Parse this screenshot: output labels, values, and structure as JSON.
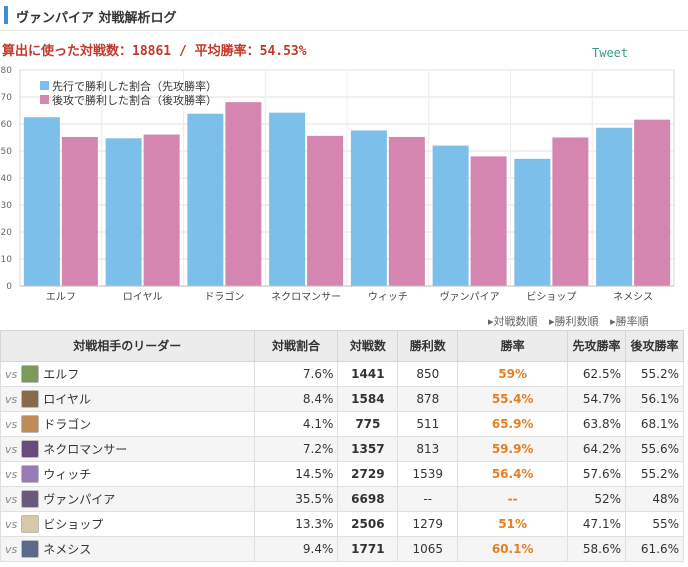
{
  "header": {
    "title": "ヴァンパイア 対戦解析ログ"
  },
  "summary": {
    "text": "算出に使った対戦数：18861 / 平均勝率：54.53%"
  },
  "tweet_label": "Tweet",
  "sort_links": [
    "▸対戦数順",
    "▸勝利数順",
    "▸勝率順"
  ],
  "colors": {
    "first": "#7cbfea",
    "second": "#d586b0",
    "rate": "#e67e22",
    "accent": "#3a8fd8"
  },
  "chart_data": {
    "type": "bar",
    "categories": [
      "エルフ",
      "ロイヤル",
      "ドラゴン",
      "ネクロマンサー",
      "ウィッチ",
      "ヴァンパイア",
      "ビショップ",
      "ネメシス"
    ],
    "series": [
      {
        "name": "先行で勝利した割合（先攻勝率）",
        "values": [
          62.5,
          54.7,
          63.8,
          64.2,
          57.6,
          52,
          47.1,
          58.6
        ]
      },
      {
        "name": "後攻で勝利した割合（後攻勝率）",
        "values": [
          55.2,
          56.1,
          68.1,
          55.6,
          55.2,
          48,
          55,
          61.6
        ]
      }
    ],
    "yticks": [
      0,
      10,
      20,
      30,
      40,
      50,
      60,
      70,
      80
    ],
    "ylim": [
      0,
      80
    ],
    "grid": true,
    "legend": "top-left"
  },
  "table": {
    "headers": [
      "対戦相手のリーダー",
      "対戦割合",
      "対戦数",
      "勝利数",
      "勝率",
      "先攻勝率",
      "後攻勝率"
    ],
    "vs_label": "vs",
    "rows": [
      {
        "leader": "エルフ",
        "share": "7.6%",
        "games": "1441",
        "wins": "850",
        "rate": "59%",
        "first": "62.5%",
        "second": "55.2%"
      },
      {
        "leader": "ロイヤル",
        "share": "8.4%",
        "games": "1584",
        "wins": "878",
        "rate": "55.4%",
        "first": "54.7%",
        "second": "56.1%"
      },
      {
        "leader": "ドラゴン",
        "share": "4.1%",
        "games": "775",
        "wins": "511",
        "rate": "65.9%",
        "first": "63.8%",
        "second": "68.1%"
      },
      {
        "leader": "ネクロマンサー",
        "share": "7.2%",
        "games": "1357",
        "wins": "813",
        "rate": "59.9%",
        "first": "64.2%",
        "second": "55.6%"
      },
      {
        "leader": "ウィッチ",
        "share": "14.5%",
        "games": "2729",
        "wins": "1539",
        "rate": "56.4%",
        "first": "57.6%",
        "second": "55.2%"
      },
      {
        "leader": "ヴァンパイア",
        "share": "35.5%",
        "games": "6698",
        "wins": "--",
        "rate": "--",
        "first": "52%",
        "second": "48%"
      },
      {
        "leader": "ビショップ",
        "share": "13.3%",
        "games": "2506",
        "wins": "1279",
        "rate": "51%",
        "first": "47.1%",
        "second": "55%"
      },
      {
        "leader": "ネメシス",
        "share": "9.4%",
        "games": "1771",
        "wins": "1065",
        "rate": "60.1%",
        "first": "58.6%",
        "second": "61.6%"
      }
    ]
  }
}
